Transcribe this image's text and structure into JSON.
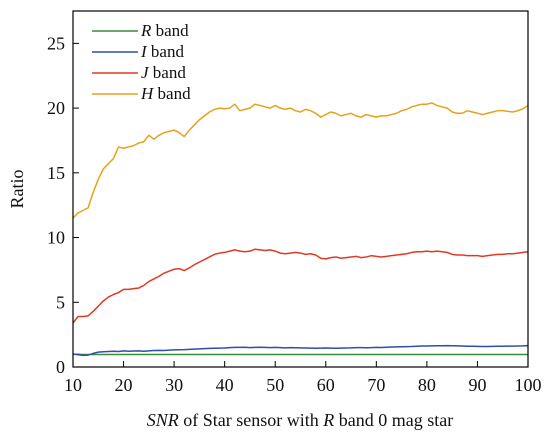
{
  "chart_data": {
    "type": "line",
    "xlabel_prefix": "SNR",
    "xlabel_rest": " of Star sensor with ",
    "xlabel_band": "R",
    "xlabel_suffix": " band 0 mag star",
    "ylabel": "Ratio",
    "xlim": [
      10,
      100
    ],
    "ylim": [
      0,
      27.5
    ],
    "xticks": [
      10,
      20,
      30,
      40,
      50,
      60,
      70,
      80,
      90,
      100
    ],
    "yticks": [
      0,
      5,
      10,
      15,
      20,
      25
    ],
    "grid": false,
    "legend_position": "top-left",
    "x": [
      10,
      11,
      12,
      13,
      14,
      15,
      16,
      17,
      18,
      19,
      20,
      21,
      22,
      23,
      24,
      25,
      26,
      27,
      28,
      29,
      30,
      31,
      32,
      33,
      34,
      35,
      36,
      37,
      38,
      39,
      40,
      41,
      42,
      43,
      44,
      45,
      46,
      47,
      48,
      49,
      50,
      51,
      52,
      53,
      54,
      55,
      56,
      57,
      58,
      59,
      60,
      61,
      62,
      63,
      64,
      65,
      66,
      67,
      68,
      69,
      70,
      71,
      72,
      73,
      74,
      75,
      76,
      77,
      78,
      79,
      80,
      81,
      82,
      83,
      84,
      85,
      86,
      87,
      88,
      89,
      90,
      91,
      92,
      93,
      94,
      95,
      96,
      97,
      98,
      99,
      100
    ],
    "series": [
      {
        "name_italic": "R",
        "name_rest": " band",
        "color": "#3a8a3a",
        "values": [
          0.98,
          0.98,
          0.97,
          0.97,
          0.97,
          0.97,
          0.97,
          0.97,
          0.97,
          0.97,
          0.97,
          0.97,
          0.97,
          0.97,
          0.97,
          0.97,
          0.97,
          0.97,
          0.97,
          0.97,
          0.97,
          0.97,
          0.97,
          0.97,
          0.97,
          0.97,
          0.97,
          0.97,
          0.97,
          0.97,
          0.97,
          0.97,
          0.97,
          0.97,
          0.97,
          0.97,
          0.97,
          0.97,
          0.97,
          0.97,
          0.97,
          0.97,
          0.97,
          0.97,
          0.97,
          0.97,
          0.97,
          0.97,
          0.97,
          0.97,
          0.97,
          0.97,
          0.97,
          0.97,
          0.97,
          0.97,
          0.97,
          0.97,
          0.97,
          0.97,
          0.97,
          0.97,
          0.97,
          0.97,
          0.97,
          0.97,
          0.97,
          0.97,
          0.97,
          0.97,
          0.97,
          0.97,
          0.97,
          0.97,
          0.97,
          0.97,
          0.97,
          0.97,
          0.97,
          0.97,
          0.97,
          0.97,
          0.97,
          0.97,
          0.97,
          0.97,
          0.97,
          0.97,
          0.97,
          0.97,
          0.97
        ]
      },
      {
        "name_italic": "I",
        "name_rest": " band",
        "color": "#2f4fa8",
        "values": [
          1.0,
          0.95,
          0.9,
          0.92,
          1.05,
          1.15,
          1.18,
          1.2,
          1.22,
          1.2,
          1.25,
          1.22,
          1.24,
          1.25,
          1.22,
          1.25,
          1.27,
          1.28,
          1.27,
          1.3,
          1.32,
          1.33,
          1.34,
          1.36,
          1.38,
          1.4,
          1.42,
          1.44,
          1.45,
          1.46,
          1.47,
          1.5,
          1.52,
          1.52,
          1.53,
          1.5,
          1.52,
          1.53,
          1.52,
          1.5,
          1.52,
          1.5,
          1.48,
          1.5,
          1.49,
          1.48,
          1.47,
          1.46,
          1.45,
          1.46,
          1.47,
          1.46,
          1.45,
          1.46,
          1.47,
          1.48,
          1.5,
          1.5,
          1.49,
          1.5,
          1.52,
          1.51,
          1.53,
          1.54,
          1.55,
          1.56,
          1.57,
          1.58,
          1.6,
          1.62,
          1.62,
          1.63,
          1.64,
          1.64,
          1.65,
          1.64,
          1.63,
          1.62,
          1.6,
          1.6,
          1.59,
          1.58,
          1.58,
          1.59,
          1.6,
          1.6,
          1.61,
          1.61,
          1.62,
          1.63,
          1.65
        ]
      },
      {
        "name_italic": "J",
        "name_rest": " band",
        "color": "#e03a24",
        "values": [
          3.4,
          3.9,
          3.9,
          3.95,
          4.3,
          4.7,
          5.1,
          5.4,
          5.6,
          5.75,
          6.0,
          6.0,
          6.05,
          6.1,
          6.3,
          6.6,
          6.8,
          7.0,
          7.25,
          7.4,
          7.55,
          7.6,
          7.45,
          7.65,
          7.9,
          8.1,
          8.3,
          8.5,
          8.7,
          8.8,
          8.85,
          8.95,
          9.05,
          8.95,
          8.9,
          8.95,
          9.1,
          9.05,
          9.0,
          9.05,
          8.95,
          8.8,
          8.75,
          8.8,
          8.85,
          8.8,
          8.7,
          8.75,
          8.65,
          8.4,
          8.35,
          8.45,
          8.5,
          8.4,
          8.45,
          8.5,
          8.55,
          8.45,
          8.5,
          8.6,
          8.55,
          8.5,
          8.55,
          8.6,
          8.65,
          8.7,
          8.75,
          8.85,
          8.9,
          8.9,
          8.95,
          8.9,
          8.95,
          8.9,
          8.85,
          8.7,
          8.65,
          8.65,
          8.6,
          8.6,
          8.6,
          8.55,
          8.6,
          8.65,
          8.7,
          8.7,
          8.75,
          8.75,
          8.8,
          8.85,
          8.9
        ]
      },
      {
        "name_italic": "H",
        "name_rest": " band",
        "color": "#e6a21c",
        "values": [
          11.5,
          11.9,
          12.1,
          12.3,
          13.5,
          14.5,
          15.3,
          15.7,
          16.1,
          17.0,
          16.9,
          17.0,
          17.1,
          17.3,
          17.4,
          17.9,
          17.6,
          17.9,
          18.1,
          18.2,
          18.3,
          18.1,
          17.8,
          18.3,
          18.7,
          19.1,
          19.4,
          19.7,
          19.9,
          20.0,
          19.95,
          20.0,
          20.3,
          19.8,
          19.9,
          20.0,
          20.3,
          20.2,
          20.1,
          20.0,
          20.2,
          20.0,
          19.9,
          20.0,
          19.8,
          19.7,
          19.9,
          19.8,
          19.6,
          19.3,
          19.5,
          19.7,
          19.6,
          19.4,
          19.5,
          19.6,
          19.4,
          19.3,
          19.5,
          19.4,
          19.3,
          19.4,
          19.4,
          19.5,
          19.6,
          19.8,
          19.9,
          20.1,
          20.2,
          20.3,
          20.3,
          20.4,
          20.2,
          20.1,
          20.0,
          19.7,
          19.6,
          19.6,
          19.8,
          19.7,
          19.6,
          19.5,
          19.6,
          19.7,
          19.8,
          19.8,
          19.75,
          19.7,
          19.8,
          19.95,
          20.2
        ]
      }
    ]
  }
}
